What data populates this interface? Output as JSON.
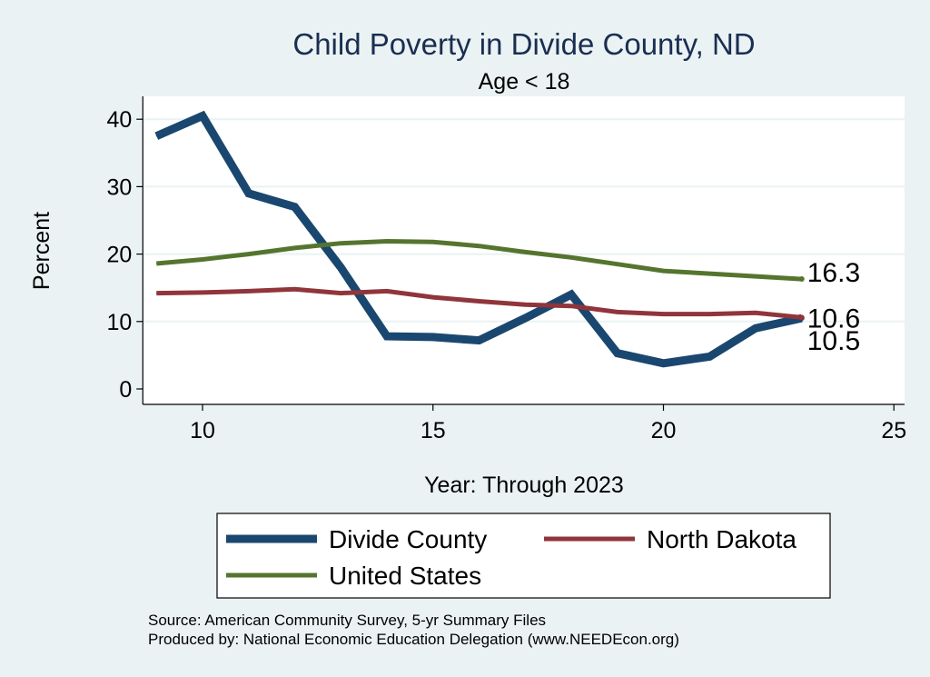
{
  "chart_data": {
    "type": "line",
    "title": "Child Poverty in Divide County, ND",
    "subtitle": "Age < 18",
    "xlabel": "Year: Through 2023",
    "ylabel": "Percent",
    "xlim": [
      9,
      25
    ],
    "ylim": [
      0,
      42
    ],
    "xticks": [
      10,
      15,
      20,
      25
    ],
    "yticks": [
      0,
      10,
      20,
      30,
      40
    ],
    "x": [
      9,
      10,
      11,
      12,
      13,
      14,
      15,
      16,
      17,
      18,
      19,
      20,
      21,
      22,
      23
    ],
    "series": [
      {
        "name": "Divide County",
        "color": "#1a476f",
        "values": [
          37.5,
          40.5,
          29,
          27,
          18,
          7.8,
          7.7,
          7.2,
          10.5,
          14,
          5.3,
          3.8,
          4.8,
          9,
          10.5
        ],
        "end_label": "10.5"
      },
      {
        "name": "North Dakota",
        "color": "#90353b",
        "values": [
          14.2,
          14.3,
          14.5,
          14.8,
          14.2,
          14.5,
          13.6,
          13,
          12.5,
          12.3,
          11.4,
          11.1,
          11.1,
          11.3,
          10.6
        ],
        "end_label": "10.6"
      },
      {
        "name": "United States",
        "color": "#55752f",
        "values": [
          18.6,
          19.2,
          20,
          20.9,
          21.6,
          21.9,
          21.8,
          21.2,
          20.3,
          19.5,
          18.5,
          17.5,
          17.1,
          16.7,
          16.3
        ],
        "end_label": "16.3"
      }
    ],
    "legend_position": "bottom",
    "grid": true
  },
  "notes": {
    "source": "Source: American Community Survey, 5-yr Summary Files",
    "produced": "Produced by: National Economic Education Delegation (www.NEEDEcon.org)"
  }
}
